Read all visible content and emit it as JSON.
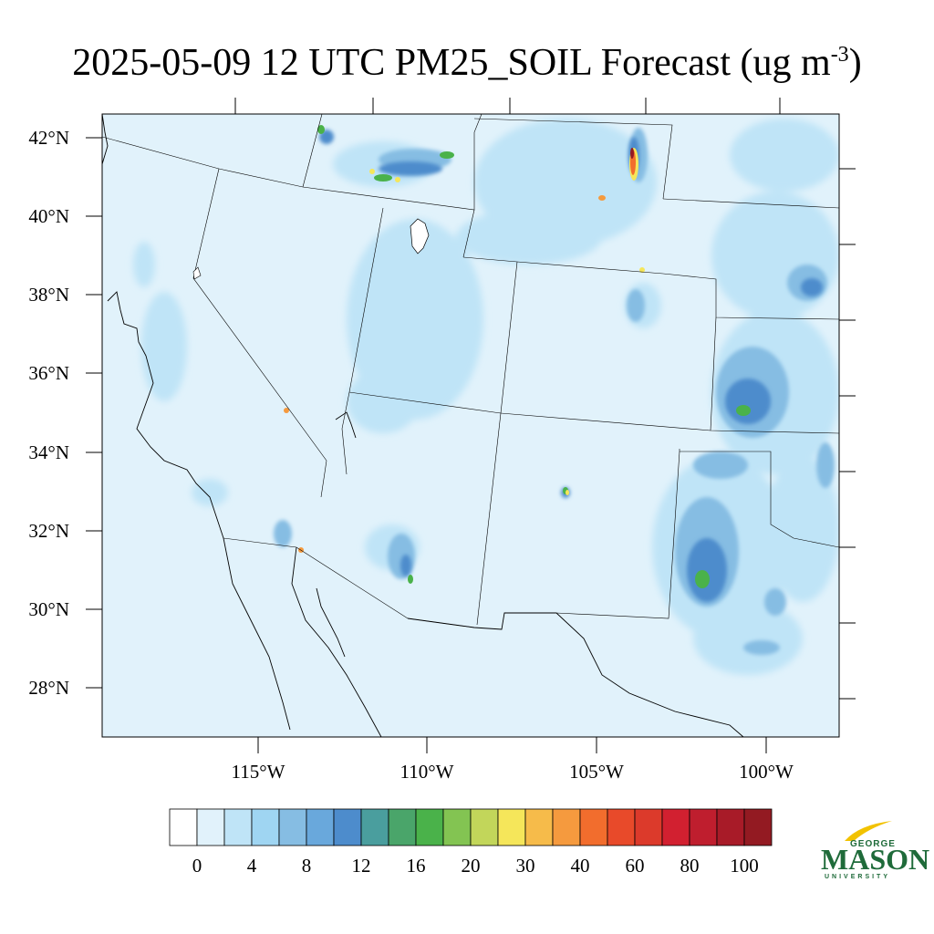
{
  "title": {
    "main": "2025-05-09 12 UTC PM25_SOIL Forecast (ug m",
    "superscript": "-3",
    "close": ")"
  },
  "map": {
    "lat_labels": [
      "42°N",
      "40°N",
      "38°N",
      "36°N",
      "34°N",
      "32°N",
      "30°N",
      "28°N"
    ],
    "lon_labels": [
      "115°W",
      "110°W",
      "105°W",
      "100°W"
    ],
    "background_color": "#e1f2fb"
  },
  "colorbar": {
    "labels": [
      "0",
      "4",
      "8",
      "12",
      "16",
      "20",
      "30",
      "40",
      "60",
      "80",
      "100"
    ],
    "colors": [
      "#ffffff",
      "#e1f2fb",
      "#bfe4f7",
      "#9fd5f2",
      "#86bde3",
      "#69a8dc",
      "#4d8ccc",
      "#4a9e9e",
      "#4aa56a",
      "#4ab24a",
      "#83c452",
      "#c2d65a",
      "#f5e65a",
      "#f6bb4a",
      "#f59a3e",
      "#f26d2d",
      "#e84a2a",
      "#dc3a2b",
      "#d22030",
      "#bf1e2e",
      "#a81b28",
      "#931a22"
    ]
  },
  "logo": {
    "line1": "GEORGE",
    "line2": "MASON",
    "line3": "UNIVERSITY"
  }
}
